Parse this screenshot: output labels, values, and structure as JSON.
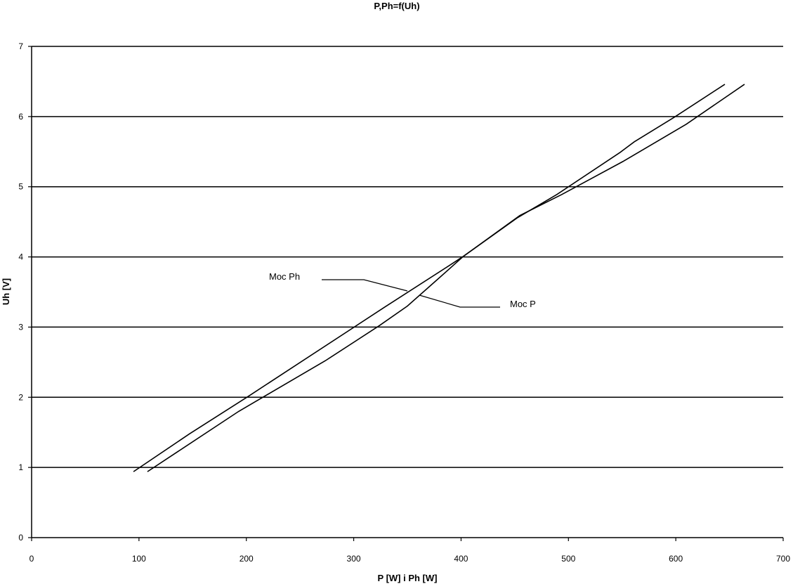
{
  "chart_data": {
    "type": "line",
    "title": "P,Ph=f(Uh)",
    "xlabel": "P [W] i Ph [W]",
    "ylabel": "Uh [V]",
    "xlim": [
      0,
      700
    ],
    "ylim": [
      0,
      7
    ],
    "xticks": [
      0,
      100,
      200,
      300,
      400,
      500,
      600,
      700
    ],
    "yticks": [
      0,
      1,
      2,
      3,
      4,
      5,
      6,
      7
    ],
    "grid": "horizontal major gridlines",
    "line_color": "#000000",
    "series": [
      {
        "name": "Moc Ph",
        "points": [
          [
            94.9,
            0.94
          ],
          [
            147.2,
            1.48
          ],
          [
            201.5,
            2.01
          ],
          [
            328.4,
            3.28
          ],
          [
            387.3,
            3.86
          ],
          [
            402.3,
            4.01
          ],
          [
            452.7,
            4.56
          ],
          [
            489.3,
            4.89
          ],
          [
            548.2,
            5.49
          ],
          [
            561.3,
            5.64
          ],
          [
            598.6,
            5.99
          ],
          [
            645.7,
            6.46
          ]
        ]
      },
      {
        "name": "Moc P",
        "points": [
          [
            107.9,
            0.94
          ],
          [
            193.0,
            1.8
          ],
          [
            273.5,
            2.52
          ],
          [
            323.8,
            3.02
          ],
          [
            350.0,
            3.3
          ],
          [
            378.1,
            3.68
          ],
          [
            402.3,
            4.01
          ],
          [
            454.7,
            4.59
          ],
          [
            493.9,
            4.89
          ],
          [
            550.8,
            5.36
          ],
          [
            609.7,
            5.89
          ],
          [
            664.0,
            6.46
          ]
        ]
      }
    ],
    "annotations": [
      "Moc Ph",
      "Moc P"
    ]
  }
}
